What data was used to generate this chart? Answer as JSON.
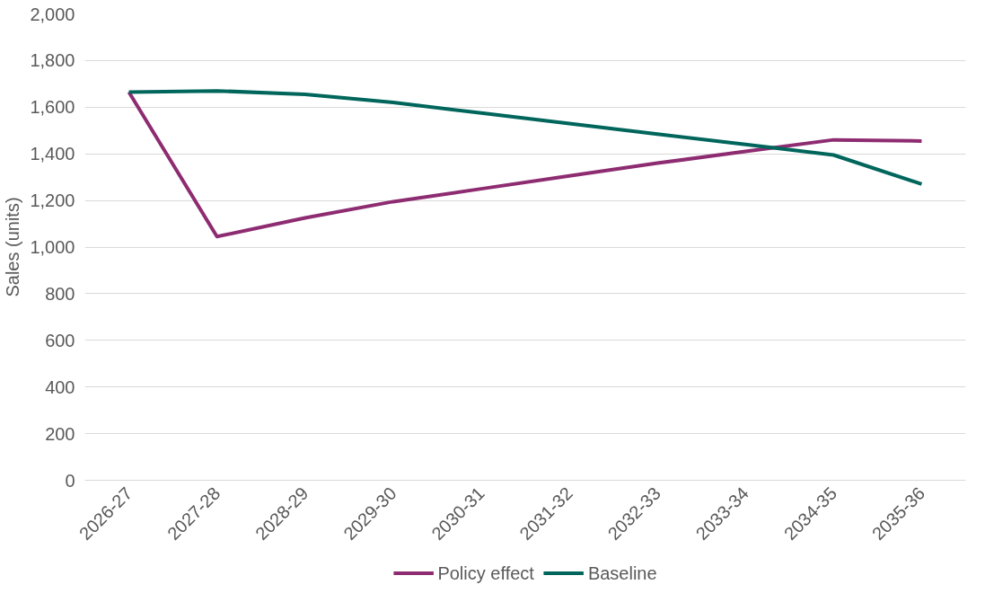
{
  "chart_data": {
    "type": "line",
    "ylabel": "Sales (units)",
    "categories": [
      "2026-27",
      "2027-28",
      "2028-29",
      "2029-30",
      "2030-31",
      "2031-32",
      "2032-33",
      "2033-34",
      "2034-35",
      "2035-36"
    ],
    "series": [
      {
        "name": "Policy effect",
        "color": "#8e2c71",
        "values": [
          1665,
          1045,
          1125,
          1195,
          1250,
          1305,
          1360,
          1410,
          1460,
          1455
        ]
      },
      {
        "name": "Baseline",
        "color": "#00665c",
        "values": [
          1665,
          1670,
          1655,
          1620,
          1575,
          1530,
          1485,
          1440,
          1395,
          1270
        ]
      }
    ],
    "ylim": [
      0,
      2000
    ],
    "yticks": [
      {
        "value": 0,
        "label": "0"
      },
      {
        "value": 200,
        "label": "200"
      },
      {
        "value": 400,
        "label": "400"
      },
      {
        "value": 600,
        "label": "600"
      },
      {
        "value": 800,
        "label": "800"
      },
      {
        "value": 1000,
        "label": "1,000"
      },
      {
        "value": 1200,
        "label": "1,200"
      },
      {
        "value": 1400,
        "label": "1,400"
      },
      {
        "value": 1600,
        "label": "1,600"
      },
      {
        "value": 1800,
        "label": "1,800"
      },
      {
        "value": 2000,
        "label": "2,000"
      }
    ],
    "grid": "y",
    "legend": "bottom",
    "line_style": "solid",
    "marker": "none"
  }
}
